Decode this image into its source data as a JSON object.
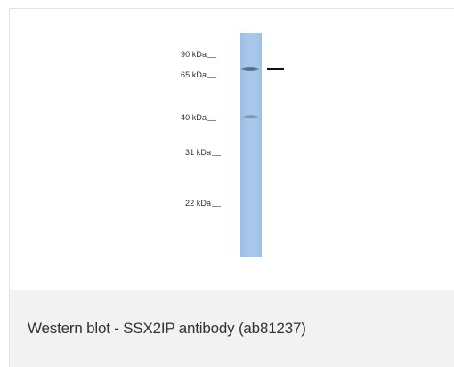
{
  "blot": {
    "markers": [
      {
        "label": "90 kDa"
      },
      {
        "label": "65 kDa"
      },
      {
        "label": "40 kDa"
      },
      {
        "label": "31 kDa"
      },
      {
        "label": "22 kDa"
      }
    ],
    "lane_color": "#a7c7ea",
    "band_color": "#4a6b80",
    "indicator_color": "#111111"
  },
  "caption": {
    "text": "Western blot - SSX2IP antibody (ab81237)"
  }
}
